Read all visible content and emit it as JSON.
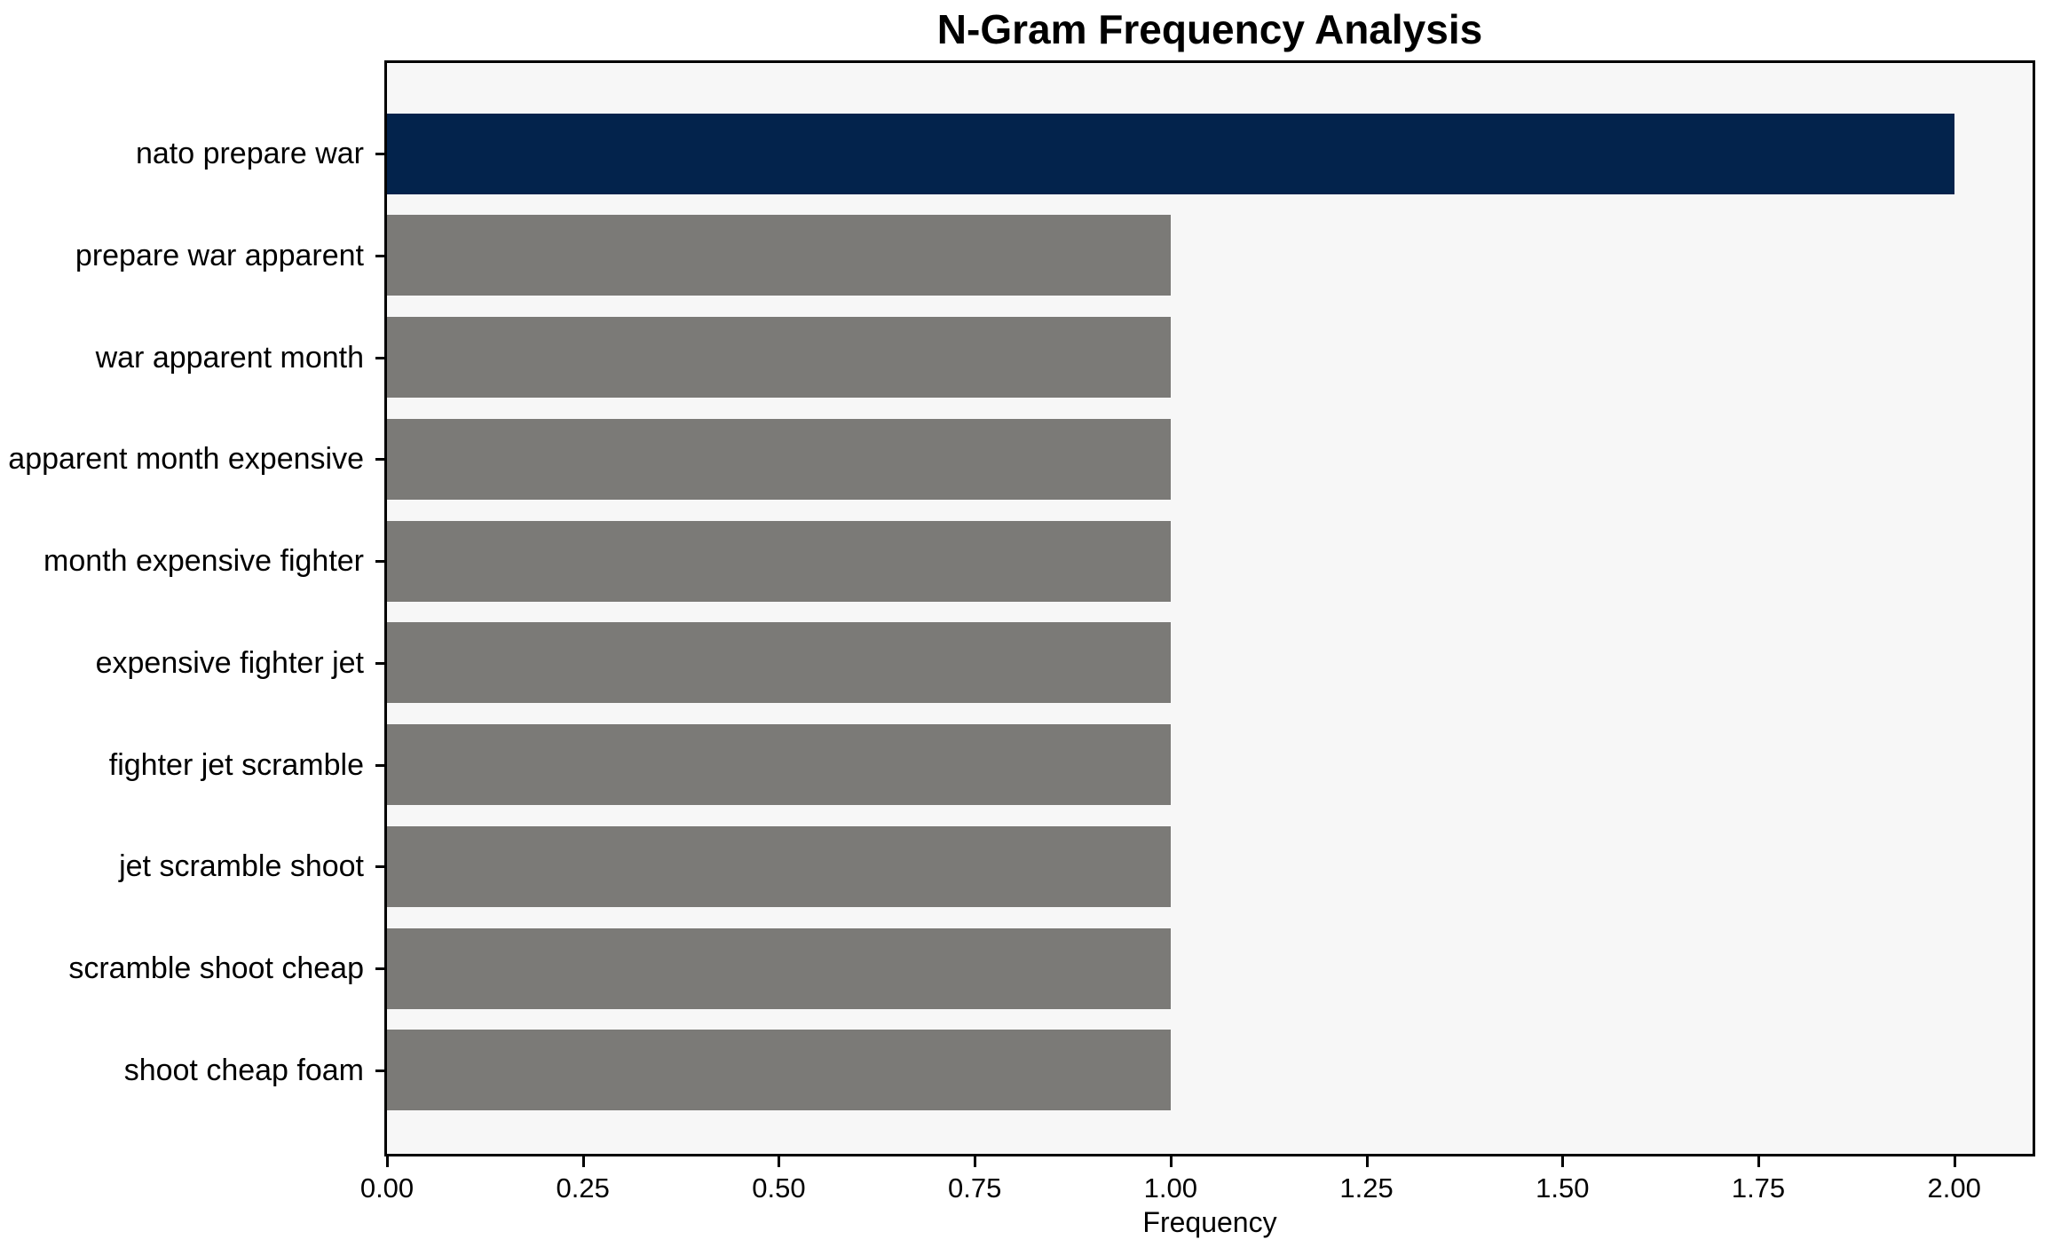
{
  "colors": {
    "figure_background": "#ffffff",
    "plot_background": "#f7f7f7",
    "spine": "#000000",
    "text": "#000000",
    "highlight_bar": "#03234c",
    "default_bar": "#7b7a77"
  },
  "chart_data": {
    "type": "bar",
    "orientation": "horizontal",
    "title": "N-Gram Frequency Analysis",
    "xlabel": "Frequency",
    "ylabel": "",
    "categories": [
      "nato prepare war",
      "prepare war apparent",
      "war apparent month",
      "apparent month expensive",
      "month expensive fighter",
      "expensive fighter jet",
      "fighter jet scramble",
      "jet scramble shoot",
      "scramble shoot cheap",
      "shoot cheap foam"
    ],
    "values": [
      2,
      1,
      1,
      1,
      1,
      1,
      1,
      1,
      1,
      1
    ],
    "bar_colors": [
      "#03234c",
      "#7b7a77",
      "#7b7a77",
      "#7b7a77",
      "#7b7a77",
      "#7b7a77",
      "#7b7a77",
      "#7b7a77",
      "#7b7a77",
      "#7b7a77"
    ],
    "xlim": [
      0,
      2.1
    ],
    "xtick_values": [
      0,
      0.25,
      0.5,
      0.75,
      1.0,
      1.25,
      1.5,
      1.75,
      2.0
    ],
    "xtick_labels": [
      "0.00",
      "0.25",
      "0.50",
      "0.75",
      "1.00",
      "1.25",
      "1.50",
      "1.75",
      "2.00"
    ],
    "grid": false,
    "legend": "none",
    "bar_height_fraction": 0.8
  }
}
